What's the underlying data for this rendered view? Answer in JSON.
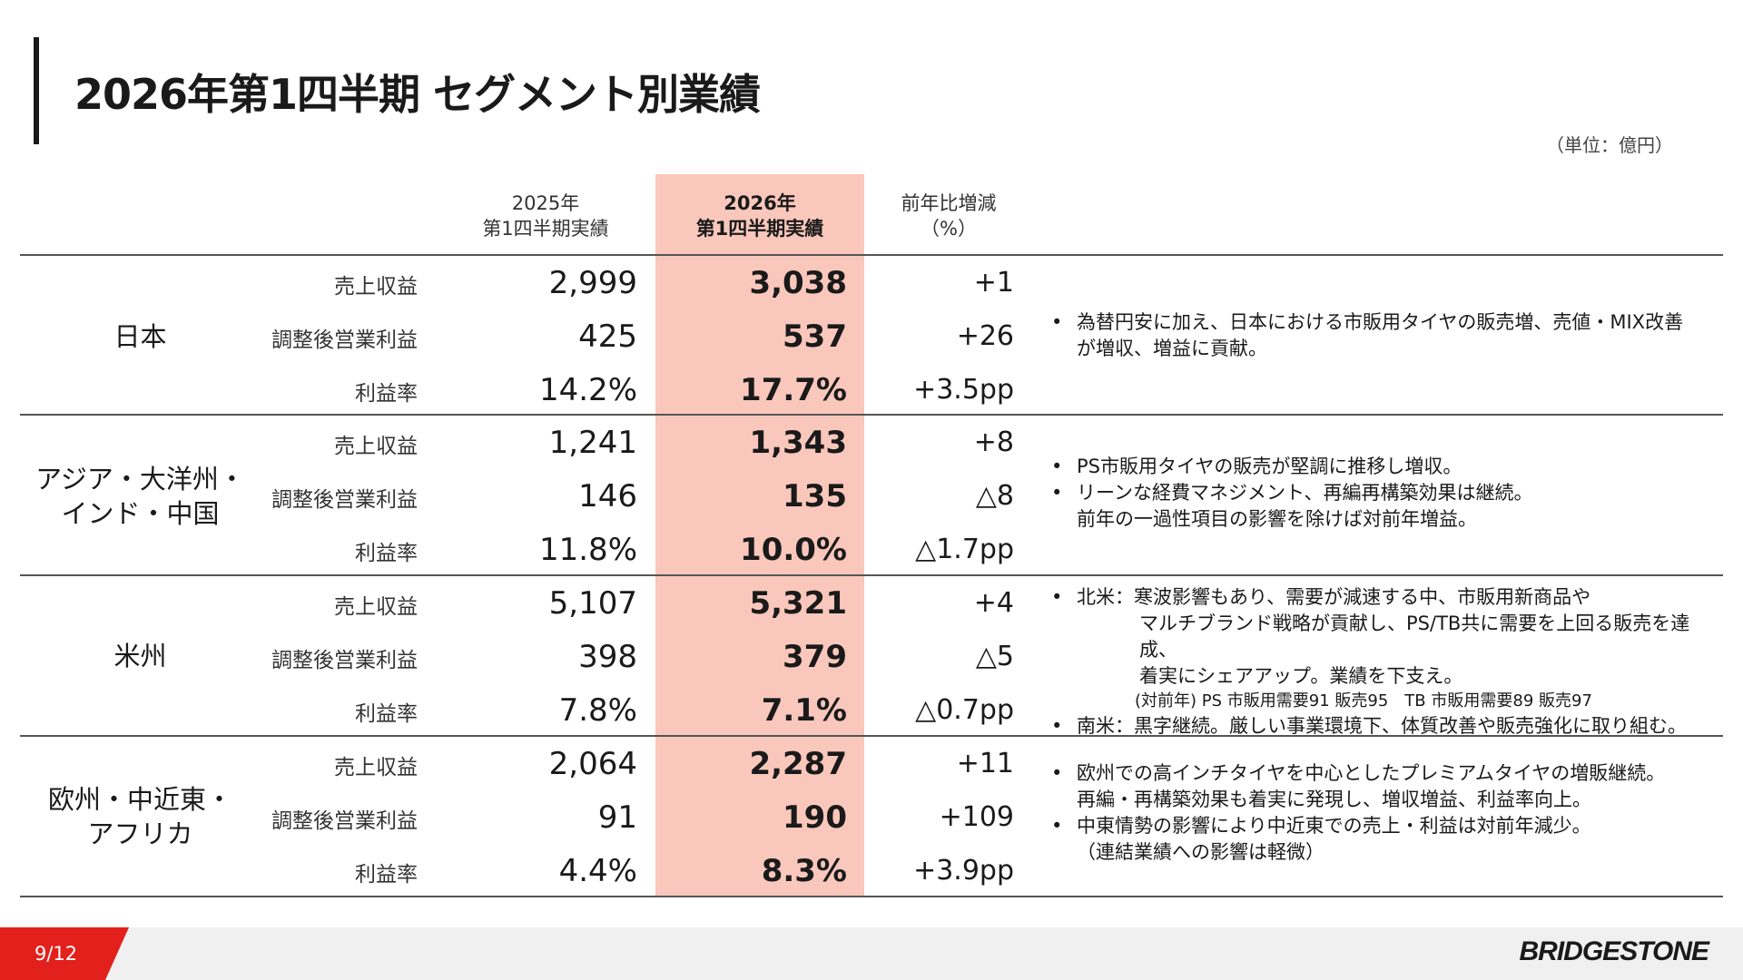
{
  "title": "2026年第1四半期 セグメント別業績",
  "unit": "（単位：億円）",
  "headers": {
    "prev_line1": "2025年",
    "prev_line2": "第1四半期実績",
    "curr_line1": "2026年",
    "curr_line2": "第1四半期実績",
    "chg_line1": "前年比増減",
    "chg_line2": "（%）"
  },
  "colors": {
    "highlight": "#f9c7bb",
    "accent": "#e2211c"
  },
  "metric_labels": [
    "売上収益",
    "調整後営業利益",
    "利益率"
  ],
  "segments": [
    {
      "name1": "日本",
      "name2": "",
      "rows": [
        {
          "prev": "2,999",
          "curr": "3,038",
          "chg": "+1"
        },
        {
          "prev": "425",
          "curr": "537",
          "chg": "+26"
        },
        {
          "prev": "14.2%",
          "curr": "17.7%",
          "chg": "+3.5pp"
        }
      ],
      "notes": [
        "為替円安に加え、日本における市販用タイヤの販売増、売値・MIX改善",
        "が増収、増益に貢献。"
      ]
    },
    {
      "name1": "アジア・大洋州・",
      "name2": "インド・中国",
      "rows": [
        {
          "prev": "1,241",
          "curr": "1,343",
          "chg": "+8"
        },
        {
          "prev": "146",
          "curr": "135",
          "chg": "△8"
        },
        {
          "prev": "11.8%",
          "curr": "10.0%",
          "chg": "△1.7pp"
        }
      ],
      "notes": [
        "PS市販用タイヤの販売が堅調に推移し増収。",
        "リーンな経費マネジメント、再編再構築効果は継続。",
        "前年の一過性項目の影響を除けば対前年増益。"
      ]
    },
    {
      "name1": "米州",
      "name2": "",
      "rows": [
        {
          "prev": "5,107",
          "curr": "5,321",
          "chg": "+4"
        },
        {
          "prev": "398",
          "curr": "379",
          "chg": "△5"
        },
        {
          "prev": "7.8%",
          "curr": "7.1%",
          "chg": "△0.7pp"
        }
      ],
      "notes": [
        "北米：寒波影響もあり、需要が減速する中、市販用新商品や",
        "マルチブランド戦略が貢献し、PS/TB共に需要を上回る販売を達成、",
        "着実にシェアアップ。業績を下支え。",
        "(対前年) PS 市販用需要91 販売95　TB 市販用需要89 販売97",
        "南米：黒字継続。厳しい事業環境下、体質改善や販売強化に取り組む。"
      ]
    },
    {
      "name1": "欧州・中近東・",
      "name2": "アフリカ",
      "rows": [
        {
          "prev": "2,064",
          "curr": "2,287",
          "chg": "+11"
        },
        {
          "prev": "91",
          "curr": "190",
          "chg": "+109"
        },
        {
          "prev": "4.4%",
          "curr": "8.3%",
          "chg": "+3.9pp"
        }
      ],
      "notes": [
        "欧州での高インチタイヤを中心としたプレミアムタイヤの増販継続。",
        "再編・再構築効果も着実に発現し、増収増益、利益率向上。",
        "中東情勢の影響により中近東での売上・利益は対前年減少。",
        "（連結業績への影響は軽微）"
      ]
    }
  ],
  "footer": {
    "page": "9/12",
    "logo": "BRIDGESTONE"
  }
}
